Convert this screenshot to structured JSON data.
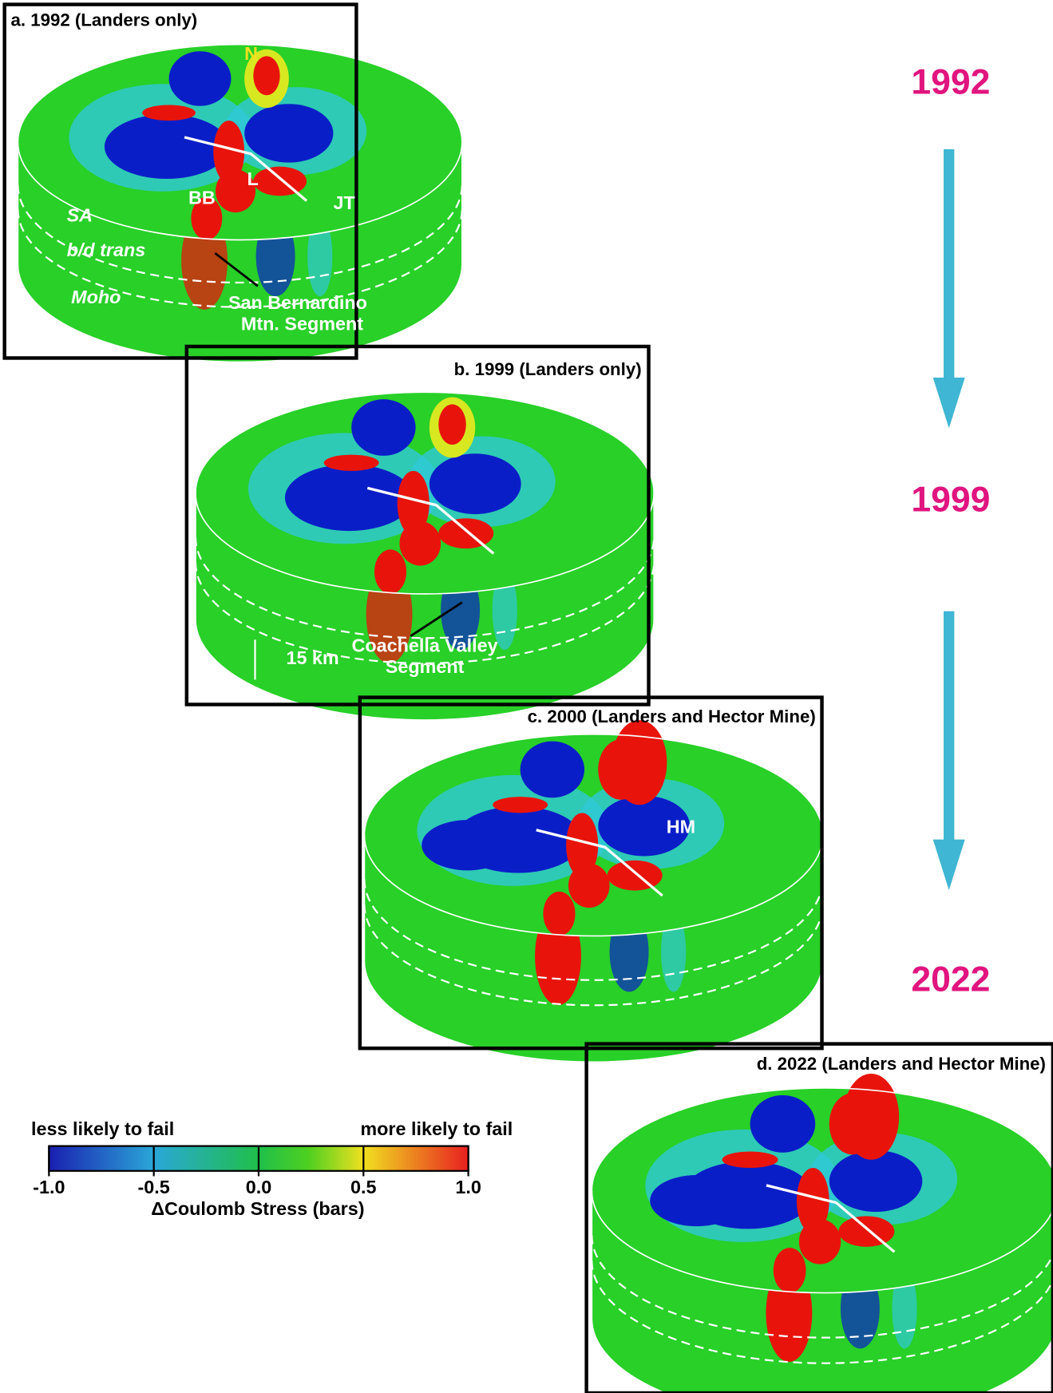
{
  "panels": [
    {
      "title": "a. 1992 (Landers only)",
      "labels": [
        "N",
        "L",
        "BB",
        "JT",
        "SA",
        "b/d trans",
        "Moho",
        "San Bernardino",
        "Mtn. Segment"
      ]
    },
    {
      "title": "b. 1999 (Landers only)",
      "labels": [
        "15 km",
        "Coachella Valley",
        "Segment"
      ]
    },
    {
      "title": "c. 2000 (Landers and Hector Mine)",
      "labels": [
        "HM"
      ]
    },
    {
      "title": "d. 2022 (Landers and Hector Mine)",
      "labels": []
    }
  ],
  "timeline": [
    "1992",
    "1999",
    "2022"
  ],
  "colorbar": {
    "left_label": "less likely to fail",
    "right_label": "more likely to fail",
    "label": "ΔCoulomb Stress (bars)",
    "lim": [
      -1,
      1
    ],
    "ticks": [
      {
        "value": -1,
        "label": "-1.0"
      },
      {
        "value": -0.5,
        "label": "-0.5"
      },
      {
        "value": 0,
        "label": "0.0"
      },
      {
        "value": 0.5,
        "label": "0.5"
      },
      {
        "value": 1,
        "label": "1.0"
      }
    ]
  }
}
